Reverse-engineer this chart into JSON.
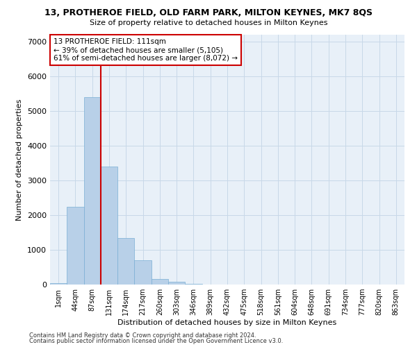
{
  "title": "13, PROTHEROE FIELD, OLD FARM PARK, MILTON KEYNES, MK7 8QS",
  "subtitle": "Size of property relative to detached houses in Milton Keynes",
  "xlabel": "Distribution of detached houses by size in Milton Keynes",
  "ylabel": "Number of detached properties",
  "footer_line1": "Contains HM Land Registry data © Crown copyright and database right 2024.",
  "footer_line2": "Contains public sector information licensed under the Open Government Licence v3.0.",
  "bar_labels": [
    "1sqm",
    "44sqm",
    "87sqm",
    "131sqm",
    "174sqm",
    "217sqm",
    "260sqm",
    "303sqm",
    "346sqm",
    "389sqm",
    "432sqm",
    "475sqm",
    "518sqm",
    "561sqm",
    "604sqm",
    "648sqm",
    "691sqm",
    "734sqm",
    "777sqm",
    "820sqm",
    "863sqm"
  ],
  "bar_values": [
    50,
    2250,
    5400,
    3400,
    1350,
    700,
    160,
    75,
    30,
    5,
    2,
    0,
    0,
    0,
    0,
    0,
    0,
    0,
    0,
    0,
    0
  ],
  "bar_color": "#b8d0e8",
  "bar_edgecolor": "#7aafd4",
  "grid_color": "#c8d8e8",
  "background_color": "#e8f0f8",
  "vline_x": 2.5,
  "vline_color": "#cc0000",
  "annotation_text": "13 PROTHEROE FIELD: 111sqm\n← 39% of detached houses are smaller (5,105)\n61% of semi-detached houses are larger (8,072) →",
  "annotation_box_edgecolor": "#cc0000",
  "ylim": [
    0,
    7200
  ],
  "yticks": [
    0,
    1000,
    2000,
    3000,
    4000,
    5000,
    6000,
    7000
  ]
}
